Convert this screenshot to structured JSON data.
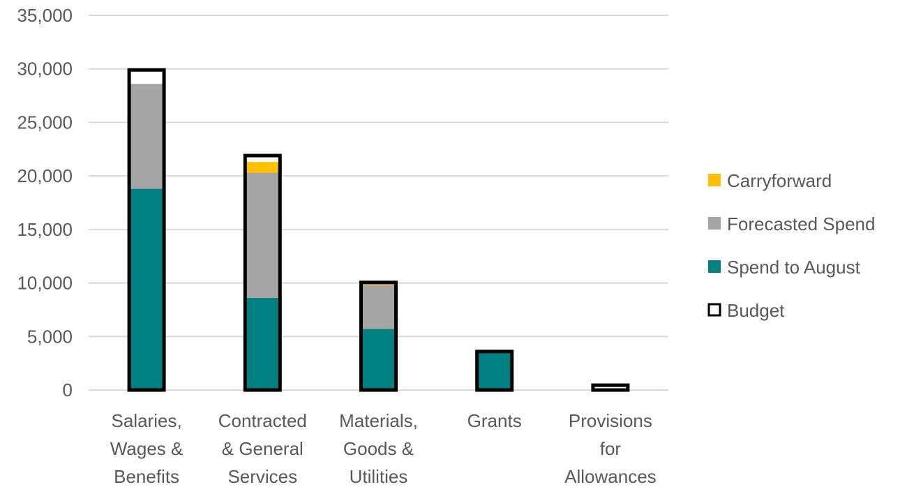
{
  "chart_data": {
    "type": "bar",
    "stacked": true,
    "categories": [
      [
        "Salaries,",
        "Wages &",
        "Benefits"
      ],
      [
        "Contracted",
        "& General",
        "Services"
      ],
      [
        "Materials,",
        "Goods &",
        "Utilities"
      ],
      [
        "Grants"
      ],
      [
        "Provisions",
        "for",
        "Allowances"
      ]
    ],
    "series": [
      {
        "name": "Spend to August",
        "color": "#008080",
        "values": [
          18800,
          8600,
          5700,
          3500,
          0
        ]
      },
      {
        "name": "Forecasted Spend",
        "color": "#A5A5A5",
        "values": [
          9800,
          11700,
          4100,
          0,
          0
        ]
      },
      {
        "name": "Carryforward",
        "color": "#FFC000",
        "values": [
          0,
          1000,
          150,
          0,
          0
        ]
      }
    ],
    "budget": {
      "name": "Budget",
      "values": [
        29900,
        21900,
        10050,
        3600,
        450
      ]
    },
    "legend_order": [
      "Carryforward",
      "Forecasted Spend",
      "Spend to August",
      "Budget"
    ],
    "legend_position": "right",
    "ylim": [
      0,
      35000
    ],
    "yticks": [
      "0",
      "5,000",
      "10,000",
      "15,000",
      "20,000",
      "25,000",
      "30,000",
      "35,000"
    ],
    "grid": true,
    "title": "",
    "xlabel": "",
    "ylabel": ""
  }
}
